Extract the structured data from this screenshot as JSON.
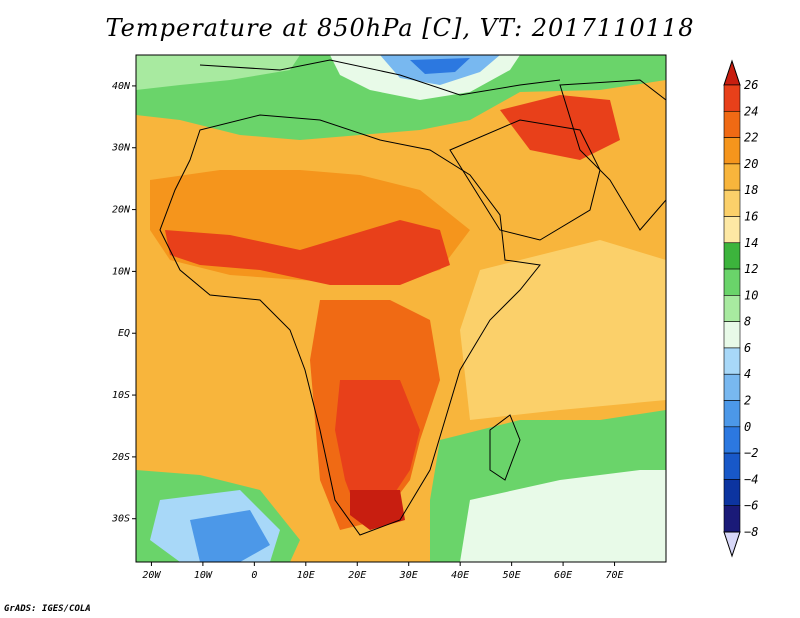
{
  "title": "Temperature at 850hPa [C], VT: 2017110118",
  "credit": "GrADS: IGES/COLA",
  "map": {
    "projection": "latlon",
    "lon_range": [
      -23,
      80
    ],
    "lat_range": [
      -37,
      45
    ],
    "lon_ticks": [
      {
        "value": -20,
        "label": "20W"
      },
      {
        "value": -10,
        "label": "10W"
      },
      {
        "value": 0,
        "label": "0"
      },
      {
        "value": 10,
        "label": "10E"
      },
      {
        "value": 20,
        "label": "20E"
      },
      {
        "value": 30,
        "label": "30E"
      },
      {
        "value": 40,
        "label": "40E"
      },
      {
        "value": 50,
        "label": "50E"
      },
      {
        "value": 60,
        "label": "60E"
      },
      {
        "value": 70,
        "label": "70E"
      }
    ],
    "lat_ticks": [
      {
        "value": 40,
        "label": "40N"
      },
      {
        "value": 30,
        "label": "30N"
      },
      {
        "value": 20,
        "label": "20N"
      },
      {
        "value": 10,
        "label": "10N"
      },
      {
        "value": 0,
        "label": "EQ"
      },
      {
        "value": -10,
        "label": "10S"
      },
      {
        "value": -20,
        "label": "20S"
      },
      {
        "value": -30,
        "label": "30S"
      }
    ],
    "variable": "Temperature at 850hPa",
    "units": "C"
  },
  "colorbar": {
    "levels": [
      {
        "value": 26,
        "label": "26"
      },
      {
        "value": 24,
        "label": "24"
      },
      {
        "value": 22,
        "label": "22"
      },
      {
        "value": 20,
        "label": "20"
      },
      {
        "value": 18,
        "label": "18"
      },
      {
        "value": 16,
        "label": "16"
      },
      {
        "value": 14,
        "label": "14"
      },
      {
        "value": 12,
        "label": "12"
      },
      {
        "value": 10,
        "label": "10"
      },
      {
        "value": 8,
        "label": "8"
      },
      {
        "value": 6,
        "label": "6"
      },
      {
        "value": 4,
        "label": "4"
      },
      {
        "value": 2,
        "label": "2"
      },
      {
        "value": 0,
        "label": "0"
      },
      {
        "value": -2,
        "label": "−2"
      },
      {
        "value": -4,
        "label": "−4"
      },
      {
        "value": -6,
        "label": "−6"
      },
      {
        "value": -8,
        "label": "−8"
      }
    ],
    "colors_top_to_bottom": [
      "#c81e10",
      "#e8401a",
      "#f06a14",
      "#f5951c",
      "#f8b53c",
      "#fbd06a",
      "#fde8a4",
      "#3cb43c",
      "#6ad46a",
      "#a8eaa0",
      "#e8fae8",
      "#a8d8f8",
      "#78b8f0",
      "#4c98e8",
      "#2c78e0",
      "#1858c8",
      "#0c34a0",
      "#1a1a78",
      "#d8d8f8"
    ],
    "above_color": "#c81e10",
    "below_color": "#d8d8f8"
  }
}
